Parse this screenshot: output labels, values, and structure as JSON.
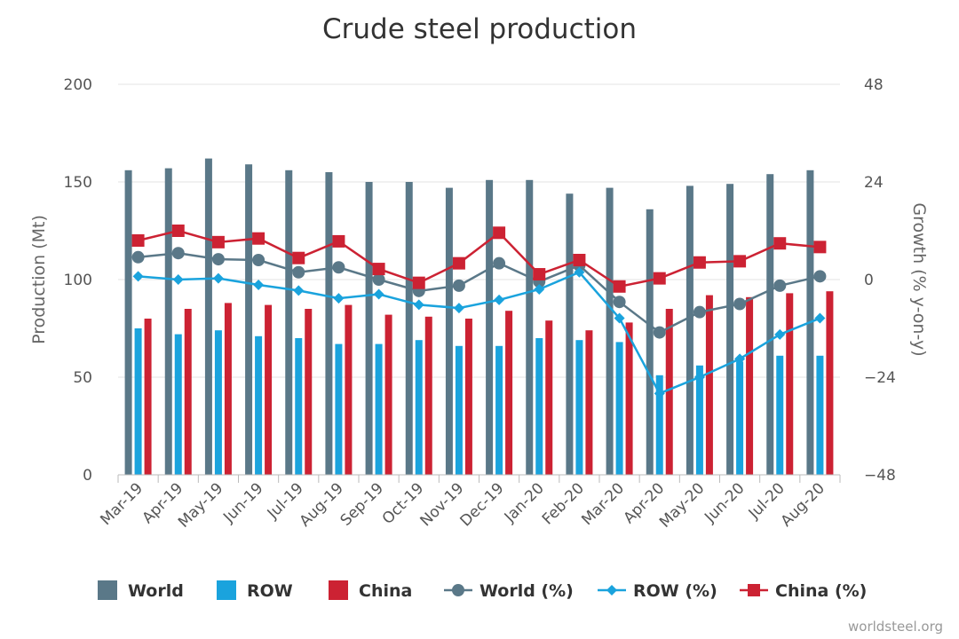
{
  "chart_data": {
    "type": "bar+line",
    "title": "Crude steel production",
    "ylabel_left": "Production (Mt)",
    "ylabel_right": "Growth (% y-on-y)",
    "ylim_left": [
      0,
      200
    ],
    "ylim_right": [
      -48,
      48
    ],
    "yticks_left": [
      "0",
      "50",
      "100",
      "150",
      "200"
    ],
    "yticks_right": [
      "−48",
      "−24",
      "0",
      "24",
      "48"
    ],
    "categories": [
      "Mar-19",
      "Apr-19",
      "May-19",
      "Jun-19",
      "Jul-19",
      "Aug-19",
      "Sep-19",
      "Oct-19",
      "Nov-19",
      "Dec-19",
      "Jan-20",
      "Feb-20",
      "Mar-20",
      "Apr-20",
      "May-20",
      "Jun-20",
      "Jul-20",
      "Aug-20"
    ],
    "bar_series": [
      {
        "name": "World",
        "color": "#5a7888",
        "values": [
          156,
          157,
          162,
          159,
          156,
          155,
          150,
          150,
          147,
          151,
          151,
          144,
          147,
          136,
          148,
          149,
          154,
          156
        ]
      },
      {
        "name": "ROW",
        "color": "#1aa3dd",
        "values": [
          75,
          72,
          74,
          71,
          70,
          67,
          67,
          69,
          66,
          66,
          70,
          69,
          68,
          51,
          56,
          58,
          61,
          61
        ]
      },
      {
        "name": "China",
        "color": "#cc2233",
        "values": [
          80,
          85,
          88,
          87,
          85,
          87,
          82,
          81,
          80,
          84,
          79,
          74,
          78,
          85,
          92,
          91,
          93,
          94
        ]
      }
    ],
    "line_series": [
      {
        "name": "World (%)",
        "color": "#5a7888",
        "marker": "circle",
        "values": [
          5.5,
          6.5,
          5,
          4.8,
          1.8,
          3,
          0,
          -2.8,
          -1.5,
          4,
          -0.5,
          3.5,
          -5.5,
          -13,
          -8,
          -6,
          -1.5,
          0.8
        ]
      },
      {
        "name": "ROW (%)",
        "color": "#1aa3dd",
        "marker": "diamond",
        "values": [
          0.8,
          0,
          0.3,
          -1.3,
          -2.7,
          -4.6,
          -3.6,
          -6.2,
          -7,
          -5,
          -2.4,
          1.8,
          -9.5,
          -28,
          -24,
          -19.5,
          -13.5,
          -9.5
        ]
      },
      {
        "name": "China (%)",
        "color": "#cc2233",
        "marker": "square",
        "values": [
          9.6,
          12,
          9.2,
          10.1,
          5.3,
          9.4,
          2.6,
          -0.8,
          4,
          11.5,
          1.3,
          4.8,
          -1.7,
          0.3,
          4.2,
          4.5,
          8.9,
          8
        ]
      }
    ]
  },
  "legend": [
    "World",
    "ROW",
    "China",
    "World (%)",
    "ROW (%)",
    "China (%)"
  ],
  "credit": "worldsteel.org"
}
